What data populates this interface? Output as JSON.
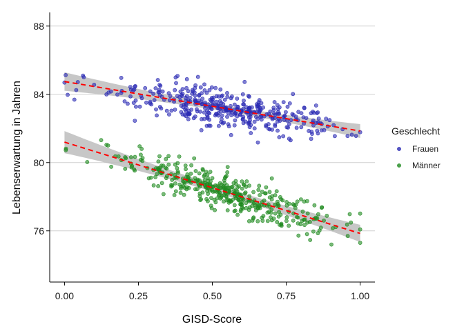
{
  "chart_data": {
    "type": "scatter",
    "xlabel": "GISD-Score",
    "ylabel": "Lebenserwartung in Jahren",
    "xlim": [
      -0.05,
      1.05
    ],
    "ylim": [
      73.0,
      88.8
    ],
    "xticks": [
      0.0,
      0.25,
      0.5,
      0.75,
      1.0
    ],
    "xtick_labels": [
      "0.00",
      "0.25",
      "0.50",
      "0.75",
      "1.00"
    ],
    "yticks": [
      76,
      80,
      84,
      88
    ],
    "ytick_labels": [
      "76",
      "80",
      "84",
      "88"
    ],
    "grid": "horizontal major gridlines",
    "legend": {
      "title": "Geschlecht",
      "placement": "right"
    },
    "series": [
      {
        "name": "Frauen",
        "point_color": "#2a2ab4",
        "n_points": 400,
        "x_center": 0.56,
        "x_spread": 0.17,
        "fit": {
          "type": "linear",
          "x": [
            0.0,
            1.0
          ],
          "y": [
            84.75,
            81.85
          ],
          "line_color": "#ff0000",
          "line_style": "dashed",
          "band_color": "#bdbdbd",
          "band_halfwidth": 0.18
        }
      },
      {
        "name": "Männer",
        "point_color": "#1f8a1f",
        "n_points": 400,
        "x_center": 0.55,
        "x_spread": 0.18,
        "fit": {
          "type": "linear",
          "x": [
            0.0,
            1.0
          ],
          "y": [
            81.2,
            75.85
          ],
          "line_color": "#ff0000",
          "line_style": "dashed",
          "band_color": "#bdbdbd",
          "band_halfwidth": 0.22
        }
      }
    ]
  }
}
